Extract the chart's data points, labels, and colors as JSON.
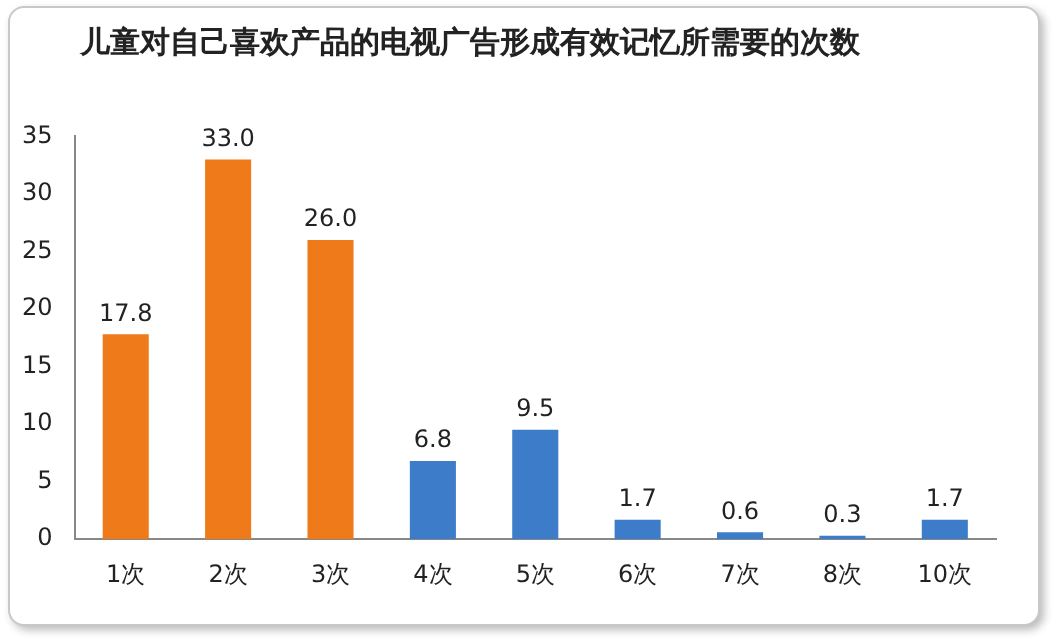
{
  "chart_data": {
    "type": "bar",
    "title": "儿童对自己喜欢产品的电视广告形成有效记忆所需要的次数",
    "categories": [
      "1次",
      "2次",
      "3次",
      "4次",
      "5次",
      "6次",
      "7次",
      "8次",
      "10次"
    ],
    "values": [
      17.8,
      33.0,
      26.0,
      6.8,
      9.5,
      1.7,
      0.6,
      0.3,
      1.7
    ],
    "value_labels": [
      "17.8",
      "33.0",
      "26.0",
      "6.8",
      "9.5",
      "1.7",
      "0.6",
      "0.3",
      "1.7"
    ],
    "colors": [
      "#ef7a1a",
      "#ef7a1a",
      "#ef7a1a",
      "#3d7cc9",
      "#3d7cc9",
      "#3d7cc9",
      "#3d7cc9",
      "#3d7cc9",
      "#3d7cc9"
    ],
    "ylim": [
      0,
      35
    ],
    "yticks": [
      0,
      5,
      10,
      15,
      20,
      25,
      30,
      35
    ],
    "grid": false,
    "legend": false
  }
}
